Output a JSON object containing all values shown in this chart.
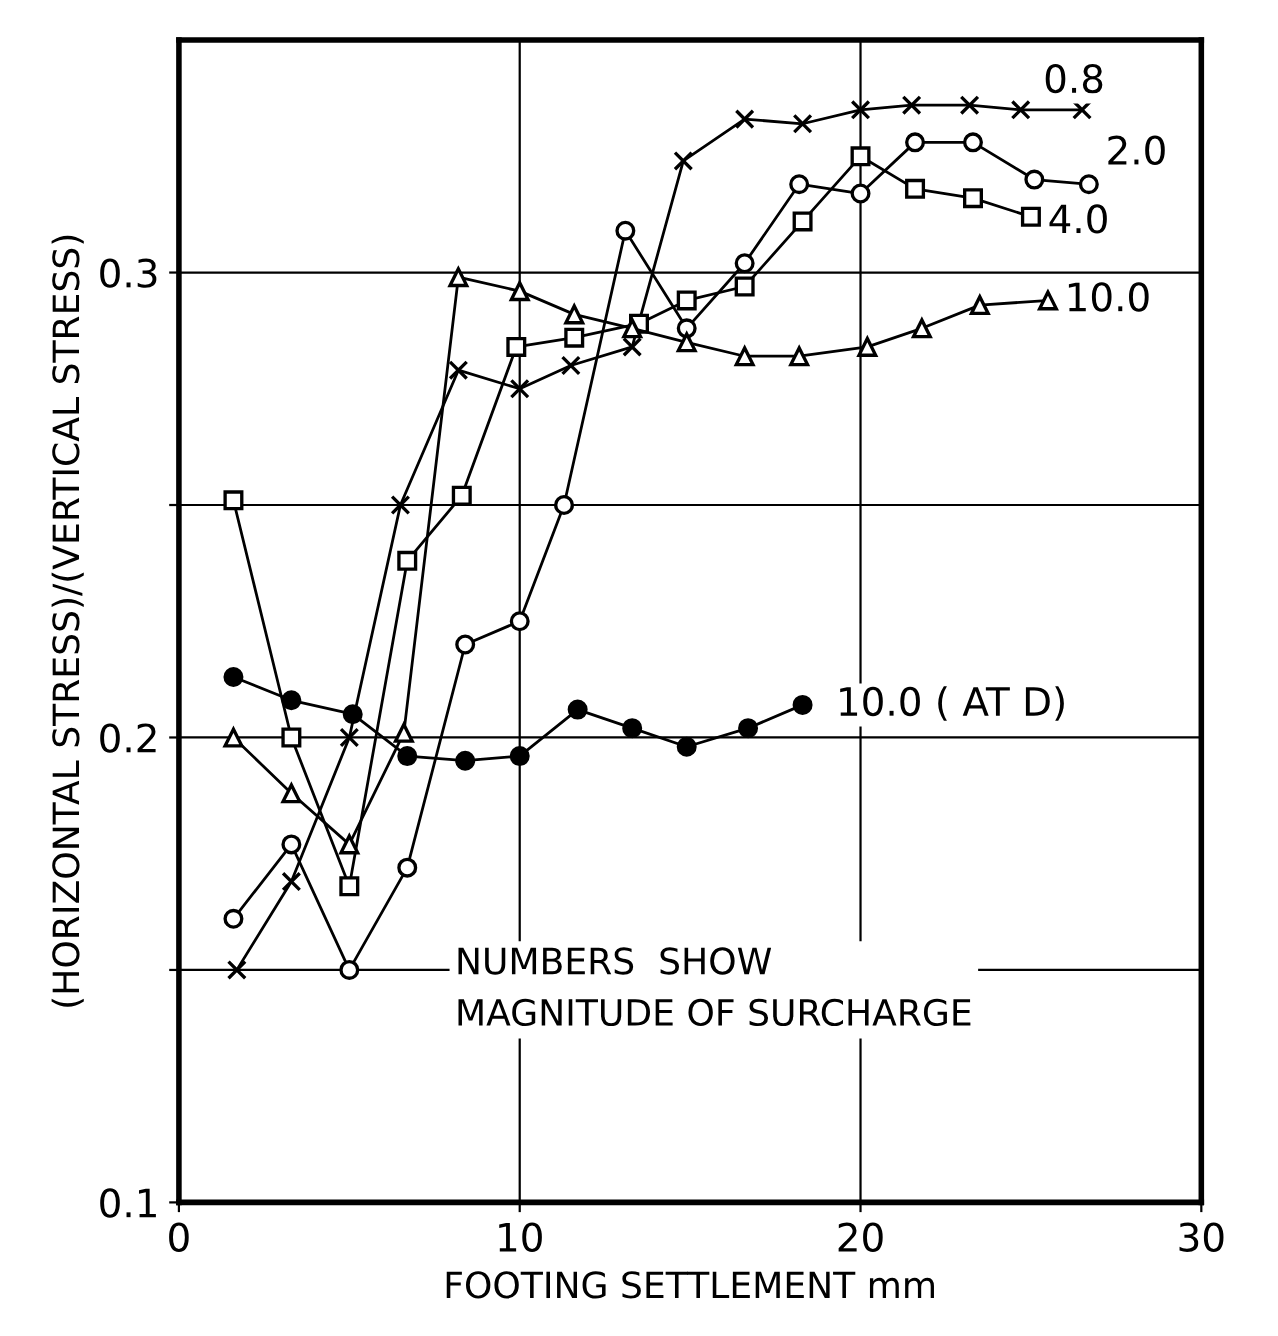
{
  "chart_data": {
    "type": "line",
    "xlabel": "FOOTING SETTLEMENT mm",
    "ylabel": "(HORIZONTAL STRESS)/(VERTICAL STRESS)",
    "xlim": [
      0,
      30
    ],
    "xticks": [
      0,
      10,
      20,
      30
    ],
    "ylim": [
      0.1,
      0.35
    ],
    "yticks": [
      0.1,
      {
        "value": 0.15,
        "label": null
      },
      0.2,
      {
        "value": 0.25,
        "label": null
      },
      0.3
    ],
    "grid": true,
    "legend": false,
    "series": [
      {
        "name": "0.8",
        "color": "#000000",
        "marker": "cross",
        "x": [
          1.7,
          3.3,
          5.0,
          6.5,
          8.2,
          10.0,
          11.5,
          13.3,
          14.8,
          16.6,
          18.3,
          20.0,
          21.5,
          23.2,
          24.7,
          26.5
        ],
        "values": [
          0.15,
          0.169,
          0.2,
          0.25,
          0.279,
          0.275,
          0.28,
          0.284,
          0.324,
          0.333,
          0.332,
          0.335,
          0.336,
          0.336,
          0.335,
          0.335
        ]
      },
      {
        "name": "2.0",
        "color": "#000000",
        "marker": "circle",
        "x": [
          1.6,
          3.3,
          5.0,
          6.7,
          8.4,
          10.0,
          11.3,
          13.1,
          14.9,
          16.6,
          18.2,
          20.0,
          21.6,
          23.3,
          25.1,
          26.7
        ],
        "values": [
          0.161,
          0.177,
          0.15,
          0.172,
          0.22,
          0.225,
          0.25,
          0.309,
          0.288,
          0.302,
          0.319,
          0.317,
          0.328,
          0.328,
          0.32,
          0.319
        ]
      },
      {
        "name": "4.0",
        "color": "#000000",
        "marker": "square",
        "x": [
          1.6,
          3.3,
          5.0,
          6.7,
          8.3,
          9.9,
          11.6,
          13.5,
          14.9,
          16.6,
          18.3,
          20.0,
          21.6,
          23.3,
          25.0
        ],
        "values": [
          0.251,
          0.2,
          0.168,
          0.238,
          0.252,
          0.284,
          0.286,
          0.289,
          0.294,
          0.297,
          0.311,
          0.325,
          0.318,
          0.316,
          0.312
        ]
      },
      {
        "name": "10.0",
        "color": "#000000",
        "marker": "triangle",
        "x": [
          1.6,
          3.3,
          5.0,
          6.6,
          8.2,
          10.0,
          11.6,
          13.3,
          14.9,
          16.6,
          18.2,
          20.2,
          21.8,
          23.5,
          25.5
        ],
        "values": [
          0.2,
          0.188,
          0.177,
          0.201,
          0.299,
          0.296,
          0.291,
          0.288,
          0.285,
          0.282,
          0.282,
          0.284,
          0.288,
          0.293,
          0.294
        ]
      },
      {
        "name": "10.0 ( AT D)",
        "color": "#000000",
        "marker": "circle",
        "x": [
          1.6,
          3.3,
          5.1,
          6.7,
          8.4,
          10.0,
          11.7,
          13.3,
          14.9,
          16.7,
          18.3
        ],
        "values": [
          0.213,
          0.208,
          0.205,
          0.196,
          0.195,
          0.196,
          0.206,
          0.202,
          0.198,
          0.202,
          0.207
        ]
      }
    ],
    "annotations": [
      "NUMBERS  SHOW\nMAGNITUDE OF SURCHARGE"
    ]
  }
}
